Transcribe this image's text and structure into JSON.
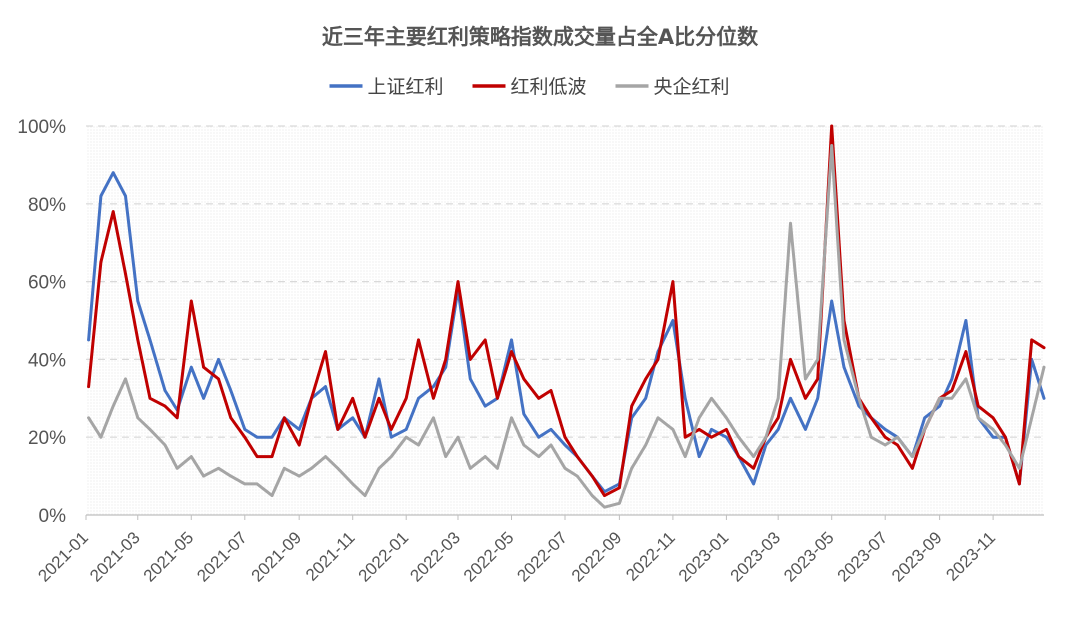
{
  "chart_data": {
    "type": "line",
    "title": "近三年主要红利策略指数成交量占全A比分位数",
    "xlabel": "",
    "ylabel": "",
    "ylim": [
      0,
      1
    ],
    "y_ticks": [
      "0%",
      "20%",
      "40%",
      "60%",
      "80%",
      "100%"
    ],
    "x_ticks": [
      "2021-01",
      "2021-03",
      "2021-05",
      "2021-07",
      "2021-09",
      "2021-11",
      "2022-01",
      "2022-03",
      "2022-05",
      "2022-07",
      "2022-09",
      "2022-11",
      "2023-01",
      "2023-03",
      "2023-05",
      "2023-07",
      "2023-09",
      "2023-11"
    ],
    "grid": true,
    "legend_position": "top-center",
    "x": [
      "2021-01-04",
      "2021-01-18",
      "2021-02-01",
      "2021-02-15",
      "2021-03-01",
      "2021-03-15",
      "2021-04-01",
      "2021-04-15",
      "2021-05-01",
      "2021-05-15",
      "2021-06-01",
      "2021-06-15",
      "2021-07-01",
      "2021-07-15",
      "2021-08-01",
      "2021-08-15",
      "2021-09-01",
      "2021-09-15",
      "2021-10-01",
      "2021-10-15",
      "2021-11-01",
      "2021-11-15",
      "2021-12-01",
      "2021-12-15",
      "2022-01-01",
      "2022-01-15",
      "2022-02-01",
      "2022-02-15",
      "2022-03-01",
      "2022-03-15",
      "2022-04-01",
      "2022-04-15",
      "2022-05-01",
      "2022-05-15",
      "2022-06-01",
      "2022-06-15",
      "2022-07-01",
      "2022-07-15",
      "2022-08-01",
      "2022-08-15",
      "2022-09-01",
      "2022-09-15",
      "2022-10-01",
      "2022-10-15",
      "2022-11-01",
      "2022-11-15",
      "2022-12-01",
      "2022-12-15",
      "2023-01-01",
      "2023-01-15",
      "2023-02-01",
      "2023-02-15",
      "2023-03-01",
      "2023-03-15",
      "2023-04-01",
      "2023-04-15",
      "2023-05-01",
      "2023-05-15",
      "2023-06-01",
      "2023-06-15",
      "2023-07-01",
      "2023-07-15",
      "2023-08-01",
      "2023-08-15",
      "2023-09-01",
      "2023-09-15",
      "2023-10-01",
      "2023-10-15",
      "2023-11-01",
      "2023-11-15",
      "2023-12-01",
      "2023-12-15",
      "2023-12-29"
    ],
    "series": [
      {
        "name": "上证红利",
        "color": "#4472C4",
        "values": [
          0.45,
          0.82,
          0.88,
          0.82,
          0.55,
          0.45,
          0.32,
          0.27,
          0.38,
          0.3,
          0.4,
          0.32,
          0.22,
          0.2,
          0.2,
          0.25,
          0.22,
          0.3,
          0.33,
          0.22,
          0.25,
          0.2,
          0.35,
          0.2,
          0.22,
          0.3,
          0.33,
          0.38,
          0.58,
          0.35,
          0.28,
          0.3,
          0.45,
          0.26,
          0.2,
          0.22,
          0.18,
          0.15,
          0.1,
          0.06,
          0.08,
          0.25,
          0.3,
          0.42,
          0.5,
          0.3,
          0.15,
          0.22,
          0.2,
          0.15,
          0.08,
          0.18,
          0.22,
          0.3,
          0.22,
          0.3,
          0.55,
          0.38,
          0.28,
          0.25,
          0.22,
          0.2,
          0.15,
          0.25,
          0.28,
          0.35,
          0.5,
          0.25,
          0.2,
          0.2,
          0.08,
          0.4,
          0.3
        ]
      },
      {
        "name": "红利低波",
        "color": "#C00000",
        "values": [
          0.33,
          0.65,
          0.78,
          0.62,
          0.45,
          0.3,
          0.28,
          0.25,
          0.55,
          0.38,
          0.35,
          0.25,
          0.2,
          0.15,
          0.15,
          0.25,
          0.18,
          0.3,
          0.42,
          0.22,
          0.3,
          0.2,
          0.3,
          0.22,
          0.3,
          0.45,
          0.3,
          0.4,
          0.6,
          0.4,
          0.45,
          0.3,
          0.42,
          0.35,
          0.3,
          0.32,
          0.2,
          0.15,
          0.1,
          0.05,
          0.07,
          0.28,
          0.35,
          0.4,
          0.6,
          0.2,
          0.22,
          0.2,
          0.22,
          0.15,
          0.12,
          0.2,
          0.25,
          0.4,
          0.3,
          0.35,
          1.0,
          0.5,
          0.3,
          0.25,
          0.2,
          0.18,
          0.12,
          0.22,
          0.3,
          0.32,
          0.42,
          0.28,
          0.25,
          0.2,
          0.08,
          0.45,
          0.43
        ]
      },
      {
        "name": "央企红利",
        "color": "#A5A5A5",
        "values": [
          0.25,
          0.2,
          0.28,
          0.35,
          0.25,
          0.22,
          0.18,
          0.12,
          0.15,
          0.1,
          0.12,
          0.1,
          0.08,
          0.08,
          0.05,
          0.12,
          0.1,
          0.12,
          0.15,
          0.12,
          0.08,
          0.05,
          0.12,
          0.15,
          0.2,
          0.18,
          0.25,
          0.15,
          0.2,
          0.12,
          0.15,
          0.12,
          0.25,
          0.18,
          0.15,
          0.18,
          0.12,
          0.1,
          0.05,
          0.02,
          0.03,
          0.12,
          0.18,
          0.25,
          0.22,
          0.15,
          0.25,
          0.3,
          0.25,
          0.2,
          0.15,
          0.2,
          0.3,
          0.75,
          0.35,
          0.4,
          0.95,
          0.45,
          0.3,
          0.2,
          0.18,
          0.2,
          0.15,
          0.22,
          0.3,
          0.3,
          0.35,
          0.25,
          0.22,
          0.18,
          0.12,
          0.25,
          0.38
        ]
      }
    ]
  }
}
